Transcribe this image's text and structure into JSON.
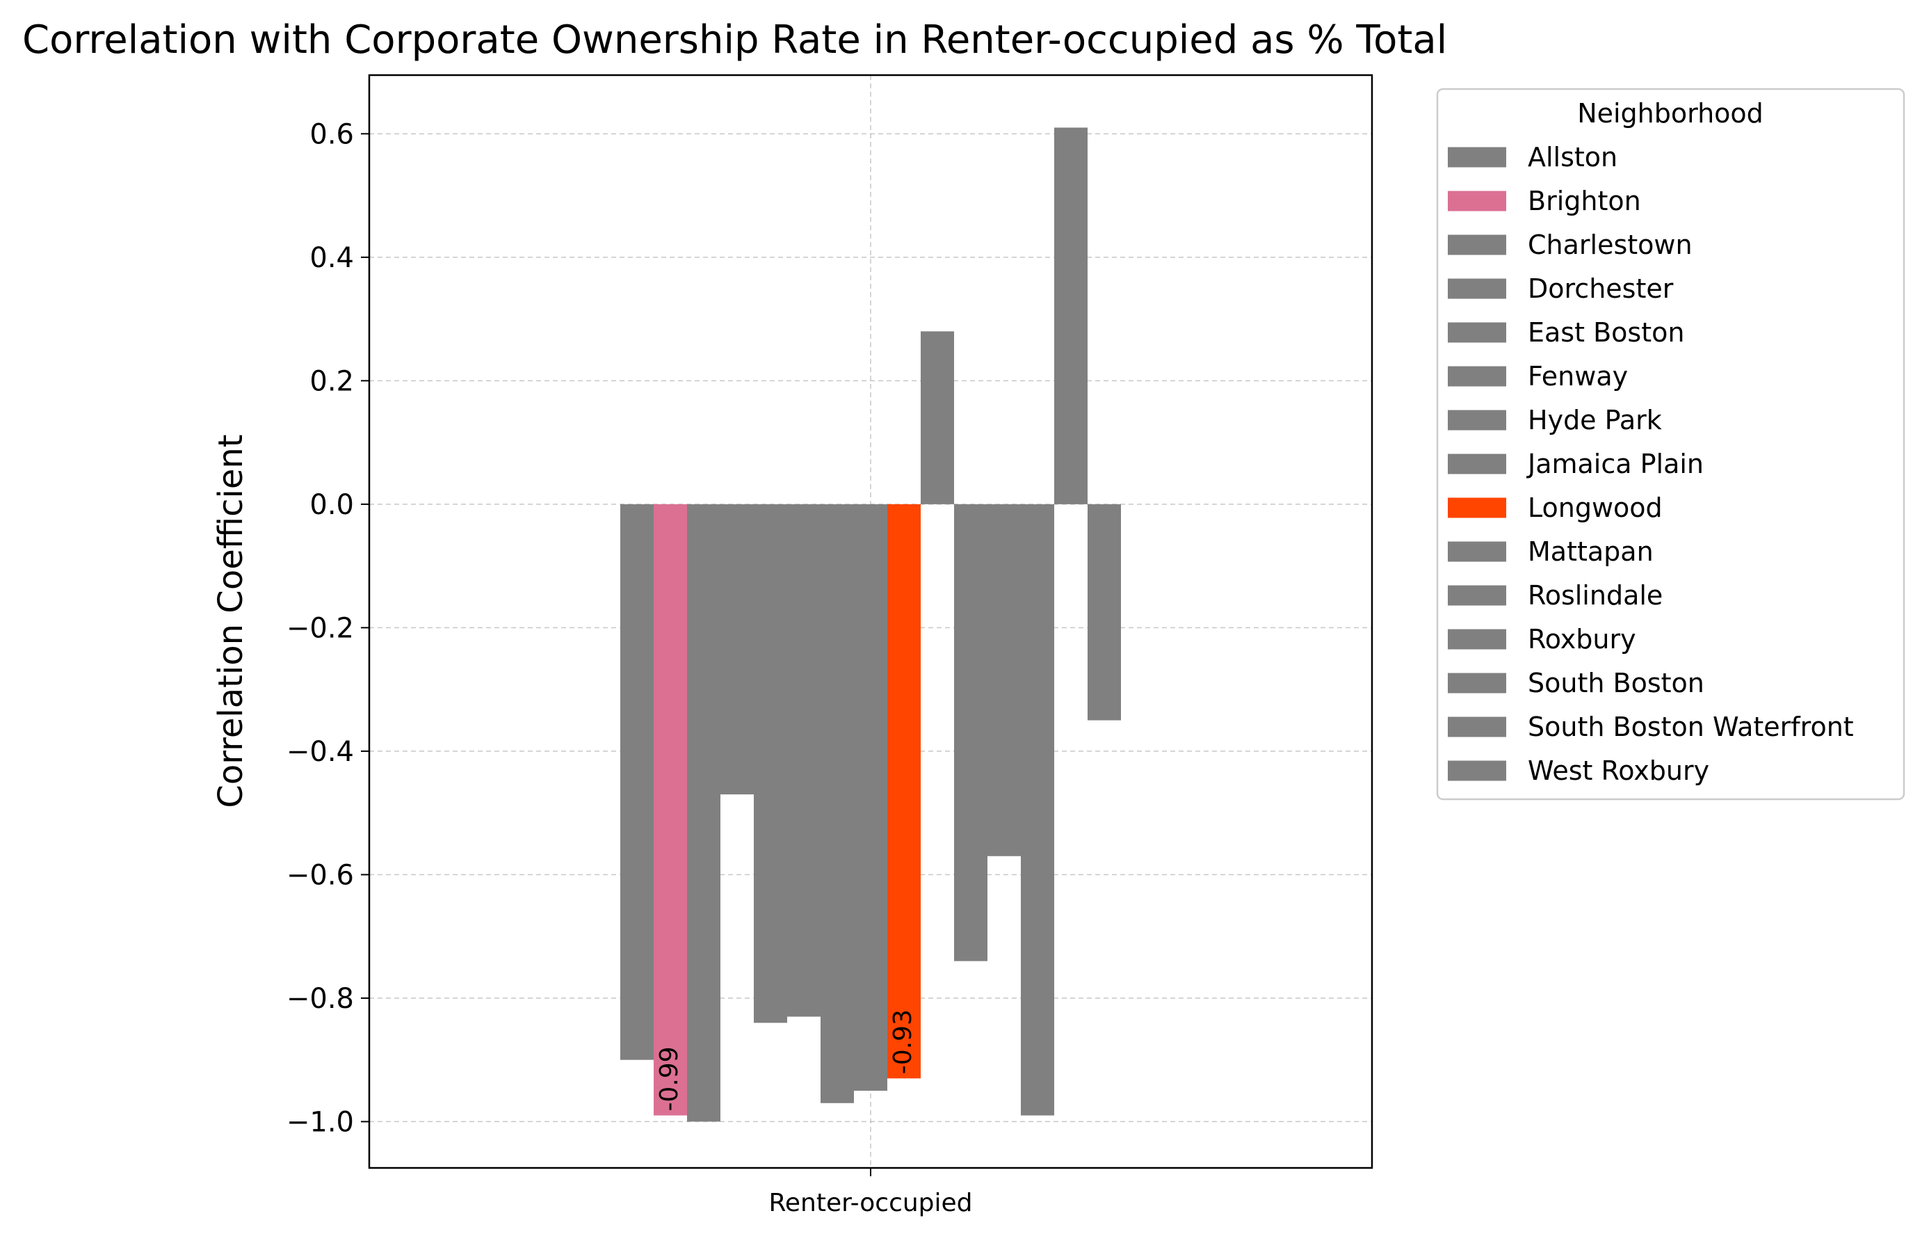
{
  "chart_data": {
    "type": "bar",
    "title": "Correlation with Corporate Ownership Rate in Renter-occupied as % Total",
    "ylabel": "Correlation Coefficient",
    "categories": [
      "Renter-occupied"
    ],
    "ylim": [
      -1.075,
      0.695
    ],
    "yticks": [
      0.6,
      0.4,
      0.2,
      0.0,
      -0.2,
      -0.4,
      -0.6,
      -0.8,
      -1.0
    ],
    "ytick_labels": [
      "0.6",
      "0.4",
      "0.2",
      "0.0",
      "−0.2",
      "−0.4",
      "−0.6",
      "−0.8",
      "−1.0"
    ],
    "grid": true,
    "legend": {
      "title": "Neighborhood",
      "placement": "outside-upper-right"
    },
    "default_color": "#808080",
    "series": [
      {
        "name": "Allston",
        "value": -0.9,
        "color": "#808080"
      },
      {
        "name": "Brighton",
        "value": -0.99,
        "color": "#DB7093",
        "label": "-0.99"
      },
      {
        "name": "Charlestown",
        "value": -1.0,
        "color": "#808080"
      },
      {
        "name": "Dorchester",
        "value": -0.47,
        "color": "#808080"
      },
      {
        "name": "East Boston",
        "value": -0.84,
        "color": "#808080"
      },
      {
        "name": "Fenway",
        "value": -0.83,
        "color": "#808080"
      },
      {
        "name": "Hyde Park",
        "value": -0.97,
        "color": "#808080"
      },
      {
        "name": "Jamaica Plain",
        "value": -0.95,
        "color": "#808080"
      },
      {
        "name": "Longwood",
        "value": -0.93,
        "color": "#FF4500",
        "label": "-0.93"
      },
      {
        "name": "Mattapan",
        "value": 0.28,
        "color": "#808080"
      },
      {
        "name": "Roslindale",
        "value": -0.74,
        "color": "#808080"
      },
      {
        "name": "Roxbury",
        "value": -0.57,
        "color": "#808080"
      },
      {
        "name": "South Boston",
        "value": -0.99,
        "color": "#808080"
      },
      {
        "name": "South Boston Waterfront",
        "value": 0.61,
        "color": "#808080"
      },
      {
        "name": "West Roxbury",
        "value": -0.35,
        "color": "#808080"
      }
    ]
  }
}
